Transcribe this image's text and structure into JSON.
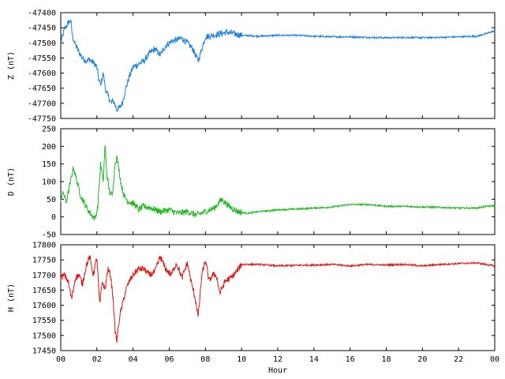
{
  "chart_data": [
    {
      "type": "line",
      "id": "z",
      "ylabel": "Z (nT)",
      "ylim": [
        -47750,
        -47400
      ],
      "yticks": [
        -47400,
        -47450,
        -47500,
        -47550,
        -47600,
        -47650,
        -47700,
        -47750
      ],
      "color": "#1a7fe0",
      "series": [
        {
          "x": [
            0,
            0.2,
            0.4,
            0.55,
            0.65,
            0.8,
            1.0,
            1.2,
            1.4,
            1.6,
            1.8,
            2.0,
            2.1,
            2.2,
            2.35,
            2.5,
            2.65,
            2.8,
            2.9,
            3.0,
            3.1,
            3.25,
            3.4,
            3.6,
            3.8,
            4.0,
            4.3,
            4.6,
            4.9,
            5.2,
            5.5,
            5.8,
            6.1,
            6.4,
            6.7,
            7.0,
            7.3,
            7.6,
            7.8,
            8.0,
            8.4,
            8.8,
            9.2,
            9.6,
            10,
            11,
            12,
            13,
            14,
            15,
            16,
            17,
            18,
            19,
            20,
            21,
            22,
            23,
            23.5,
            24
          ],
          "y": [
            -47500,
            -47455,
            -47435,
            -47425,
            -47480,
            -47505,
            -47530,
            -47550,
            -47560,
            -47555,
            -47565,
            -47580,
            -47620,
            -47640,
            -47600,
            -47660,
            -47680,
            -47700,
            -47690,
            -47705,
            -47720,
            -47715,
            -47700,
            -47650,
            -47610,
            -47580,
            -47570,
            -47560,
            -47535,
            -47520,
            -47540,
            -47510,
            -47495,
            -47490,
            -47485,
            -47500,
            -47520,
            -47560,
            -47520,
            -47480,
            -47475,
            -47470,
            -47465,
            -47470,
            -47475,
            -47478,
            -47475,
            -47475,
            -47478,
            -47480,
            -47480,
            -47482,
            -47483,
            -47482,
            -47483,
            -47482,
            -47480,
            -47478,
            -47470,
            -47460
          ]
        }
      ]
    },
    {
      "type": "line",
      "id": "d",
      "ylabel": "D (nT)",
      "ylim": [
        -50,
        250
      ],
      "yticks": [
        250,
        200,
        150,
        100,
        50,
        0,
        -50
      ],
      "color": "#1fb81f",
      "series": [
        {
          "x": [
            0,
            0.15,
            0.3,
            0.5,
            0.7,
            0.9,
            1.1,
            1.3,
            1.5,
            1.7,
            1.9,
            2.05,
            2.2,
            2.35,
            2.45,
            2.55,
            2.7,
            2.85,
            3.0,
            3.1,
            3.2,
            3.35,
            3.5,
            3.7,
            3.9,
            4.1,
            4.3,
            4.6,
            5.0,
            5.5,
            6.0,
            6.5,
            7.0,
            7.5,
            8.0,
            8.5,
            8.9,
            9.3,
            9.8,
            10.3,
            11,
            12,
            13,
            14,
            15,
            16,
            17,
            18,
            19,
            20,
            21,
            22,
            23,
            23.5,
            24
          ],
          "y": [
            50,
            70,
            40,
            90,
            140,
            100,
            60,
            40,
            20,
            5,
            -5,
            30,
            150,
            100,
            205,
            120,
            70,
            60,
            150,
            170,
            140,
            90,
            60,
            45,
            40,
            35,
            20,
            30,
            25,
            15,
            20,
            10,
            15,
            5,
            15,
            25,
            50,
            30,
            15,
            10,
            15,
            20,
            22,
            25,
            28,
            35,
            35,
            30,
            30,
            28,
            27,
            25,
            25,
            30,
            32
          ]
        }
      ]
    },
    {
      "type": "line",
      "id": "h",
      "ylabel": "H (nT)",
      "ylim": [
        17450,
        17800
      ],
      "yticks": [
        17800,
        17750,
        17700,
        17650,
        17600,
        17550,
        17500,
        17450
      ],
      "xlabel": "Hour",
      "xticks": [
        "00",
        "02",
        "04",
        "06",
        "08",
        "10",
        "12",
        "14",
        "16",
        "18",
        "20",
        "22",
        "00"
      ],
      "color": "#e01414",
      "series": [
        {
          "x": [
            0,
            0.2,
            0.4,
            0.6,
            0.8,
            1.0,
            1.2,
            1.4,
            1.6,
            1.8,
            2.0,
            2.15,
            2.3,
            2.45,
            2.6,
            2.75,
            2.9,
            3.0,
            3.1,
            3.25,
            3.4,
            3.6,
            3.8,
            4.0,
            4.3,
            4.6,
            4.9,
            5.2,
            5.5,
            5.8,
            6.1,
            6.4,
            6.7,
            7.0,
            7.2,
            7.45,
            7.6,
            7.8,
            8.0,
            8.2,
            8.4,
            8.6,
            8.8,
            9.1,
            9.4,
            9.7,
            10,
            11,
            12,
            13,
            14,
            15,
            16,
            17,
            18,
            19,
            20,
            21,
            22,
            23,
            24
          ],
          "y": [
            17690,
            17700,
            17680,
            17620,
            17690,
            17700,
            17670,
            17730,
            17760,
            17700,
            17760,
            17600,
            17680,
            17650,
            17720,
            17700,
            17620,
            17520,
            17480,
            17560,
            17600,
            17650,
            17680,
            17700,
            17720,
            17720,
            17700,
            17710,
            17760,
            17720,
            17700,
            17740,
            17690,
            17740,
            17680,
            17620,
            17560,
            17700,
            17750,
            17680,
            17700,
            17700,
            17640,
            17680,
            17690,
            17710,
            17735,
            17735,
            17730,
            17732,
            17733,
            17735,
            17730,
            17735,
            17733,
            17735,
            17730,
            17735,
            17738,
            17740,
            17730
          ]
        }
      ]
    }
  ]
}
